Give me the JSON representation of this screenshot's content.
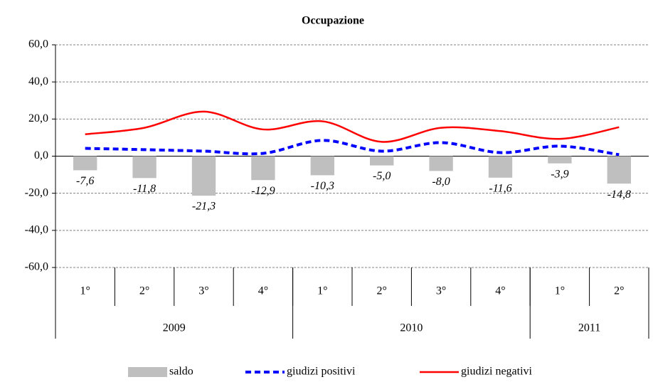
{
  "chart_data": {
    "type": "combo",
    "title": "Occupazione",
    "categories": [
      "1°",
      "2°",
      "3°",
      "4°",
      "1°",
      "2°",
      "3°",
      "4°",
      "1°",
      "2°"
    ],
    "groups": [
      {
        "label": "2009",
        "span": 4
      },
      {
        "label": "2010",
        "span": 4
      },
      {
        "label": "2011",
        "span": 2
      }
    ],
    "series": [
      {
        "name": "saldo",
        "type": "bar",
        "color": "#bfbfbf",
        "values": [
          -7.6,
          -11.8,
          -21.3,
          -12.9,
          -10.3,
          -5.0,
          -8.0,
          -11.6,
          -3.9,
          -14.8
        ],
        "value_labels": [
          "-7,6",
          "-11,8",
          "-21,3",
          "-12,9",
          "-10,3",
          "-5,0",
          "-8,0",
          "-11,6",
          "-3,9",
          "-14,8"
        ]
      },
      {
        "name": "giudizi positivi",
        "type": "line",
        "color": "#0000ff",
        "line_style": "dashed",
        "values": [
          4.2,
          3.5,
          2.7,
          1.5,
          8.5,
          2.7,
          7.3,
          1.9,
          5.4,
          0.8
        ]
      },
      {
        "name": "giudizi negativi",
        "type": "line",
        "color": "#ff0000",
        "line_style": "solid",
        "values": [
          11.8,
          15.3,
          24.0,
          14.4,
          18.8,
          7.7,
          15.3,
          13.5,
          9.3,
          15.6
        ]
      }
    ],
    "ylim": [
      -60,
      60
    ],
    "yticks": [
      {
        "value": -60,
        "label": "-60,0"
      },
      {
        "value": -40,
        "label": "-40,0"
      },
      {
        "value": -20,
        "label": "-20,0"
      },
      {
        "value": 0,
        "label": "0,0"
      },
      {
        "value": 20,
        "label": "20,0"
      },
      {
        "value": 40,
        "label": "40,0"
      },
      {
        "value": 60,
        "label": "60,0"
      }
    ],
    "grid": true,
    "legend": "bottom"
  }
}
